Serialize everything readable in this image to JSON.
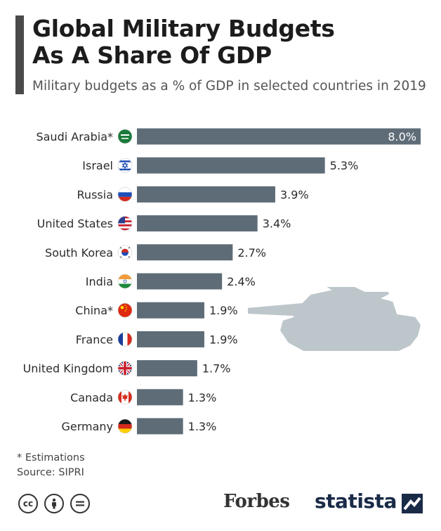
{
  "title_line1": "Global Military Budgets",
  "title_line2": "As A Share Of GDP",
  "subtitle": "Military budgets as a % of GDP in selected countries in 2019",
  "colors": {
    "bar": "#5e6c77",
    "title_rule": "#4a4a4a",
    "tank": "#9aa6ae"
  },
  "chart_data": {
    "type": "bar",
    "orientation": "horizontal",
    "title": "Global Military Budgets As A Share Of GDP",
    "subtitle": "Military budgets as a % of GDP in selected countries in 2019",
    "unit": "%",
    "xlim": [
      0,
      8
    ],
    "categories": [
      "Saudi Arabia*",
      "Israel",
      "Russia",
      "United States",
      "South Korea",
      "India",
      "China*",
      "France",
      "United Kingdom",
      "Canada",
      "Germany"
    ],
    "values": [
      8.0,
      5.3,
      3.9,
      3.4,
      2.7,
      2.4,
      1.9,
      1.9,
      1.7,
      1.3,
      1.3
    ],
    "value_labels": [
      "8.0%",
      "5.3%",
      "3.9%",
      "3.4%",
      "2.7%",
      "2.4%",
      "1.9%",
      "1.9%",
      "1.7%",
      "1.3%",
      "1.3%"
    ],
    "flags": [
      "saudi-arabia-flag-icon",
      "israel-flag-icon",
      "russia-flag-icon",
      "united-states-flag-icon",
      "south-korea-flag-icon",
      "india-flag-icon",
      "china-flag-icon",
      "france-flag-icon",
      "united-kingdom-flag-icon",
      "canada-flag-icon",
      "germany-flag-icon"
    ]
  },
  "notes": {
    "estimations": "* Estimations",
    "source": "Source: SIPRI"
  },
  "footer": {
    "forbes": "Forbes",
    "statista": "statista",
    "cc_icons": [
      "cc-icon",
      "by-icon",
      "nd-icon"
    ]
  }
}
